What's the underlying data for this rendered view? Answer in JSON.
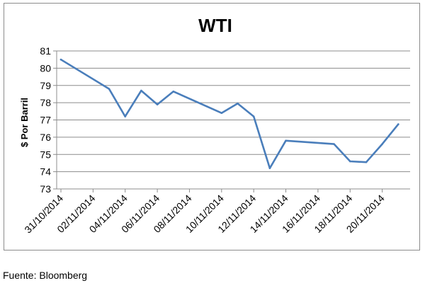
{
  "source": "Fuente: Bloomberg",
  "chart_data": {
    "type": "line",
    "title": "WTI",
    "xlabel": "",
    "ylabel": "$ Por Barril",
    "ylim": [
      73,
      81
    ],
    "yticks": [
      73,
      74,
      75,
      76,
      77,
      78,
      79,
      80,
      81
    ],
    "grid": true,
    "legend": "none",
    "line_color": "#4a7ebb",
    "xticks": [
      "31/10/2014",
      "02/11/2014",
      "04/11/2014",
      "06/11/2014",
      "08/11/2014",
      "10/11/2014",
      "12/11/2014",
      "14/11/2014",
      "16/11/2014",
      "18/11/2014",
      "20/11/2014"
    ],
    "series": [
      {
        "x": [
          "31/10/2014",
          "03/11/2014",
          "04/11/2014",
          "05/11/2014",
          "06/11/2014",
          "07/11/2014",
          "10/11/2014",
          "11/11/2014",
          "12/11/2014",
          "13/11/2014",
          "14/11/2014",
          "17/11/2014",
          "18/11/2014",
          "19/11/2014",
          "20/11/2014",
          "21/11/2014"
        ],
        "values": [
          80.5,
          78.8,
          77.2,
          78.7,
          77.9,
          78.65,
          77.4,
          77.95,
          77.2,
          74.2,
          75.8,
          75.6,
          74.6,
          74.55,
          75.6,
          76.75
        ]
      }
    ]
  }
}
